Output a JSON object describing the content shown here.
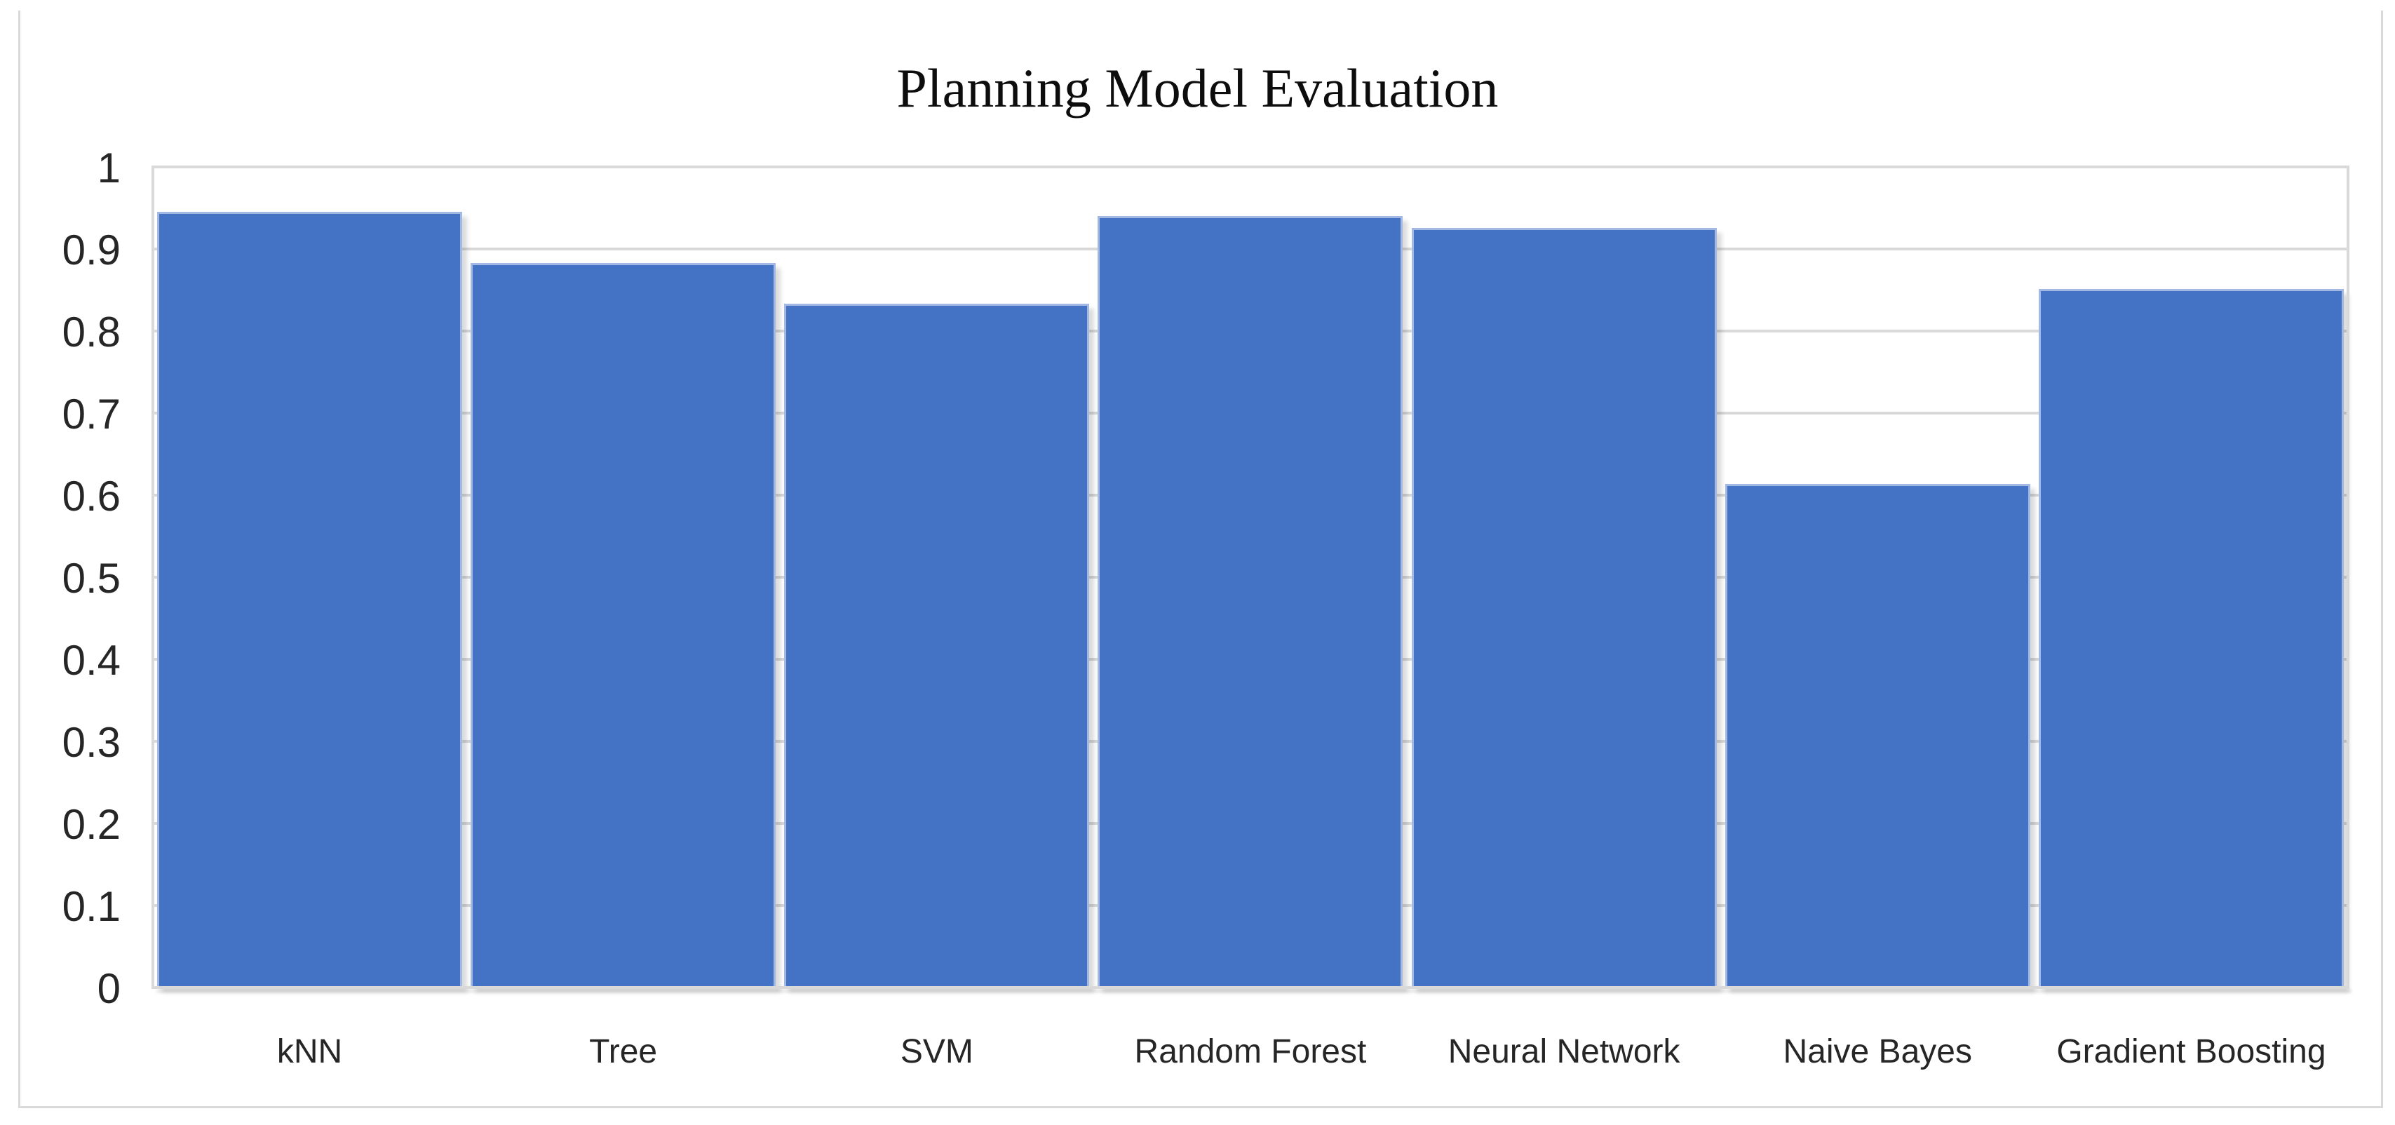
{
  "panel": {
    "background": "#FFFFFF",
    "border_color": "#D9D9D9"
  },
  "chart_data": {
    "type": "bar",
    "title": "Planning Model Evaluation",
    "categories": [
      "kNN",
      "Tree",
      "SVM",
      "Random Forest",
      "Neural Network",
      "Naive Bayes",
      "Gradient Boosting"
    ],
    "values": [
      0.945,
      0.883,
      0.833,
      0.94,
      0.926,
      0.614,
      0.851
    ],
    "xlabel": "",
    "ylabel": "",
    "ylim": [
      0,
      1
    ],
    "ytick_step": 0.1,
    "ytick_labels": [
      "1",
      "0.9",
      "0.8",
      "0.7",
      "0.6",
      "0.5",
      "0.4",
      "0.3",
      "0.2",
      "0.1",
      "0"
    ],
    "grid": "horizontal",
    "legend_position": "none",
    "bar_color": "#4472C4",
    "bar_edge_color": "#A3B9E3",
    "gridline_color": "#D9D9D9",
    "axis_label_color": "#262626",
    "title_color": "#0D0D0D"
  }
}
